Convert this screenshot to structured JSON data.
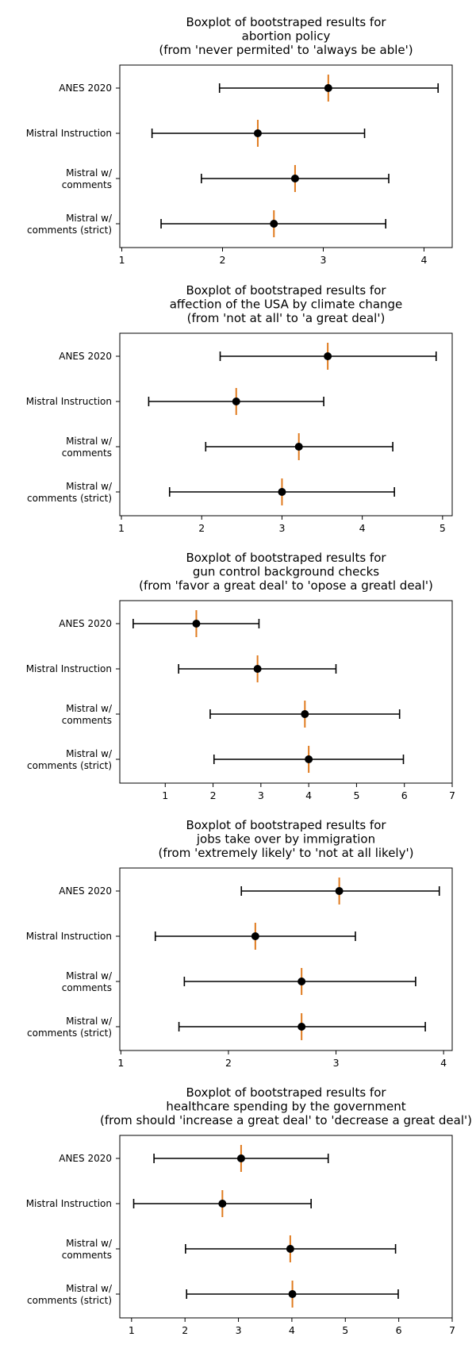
{
  "chart_data": [
    {
      "type": "errorbar",
      "title_lines": [
        "Boxplot of bootstraped results for",
        "abortion policy",
        "(from 'never permited' to 'always be able')"
      ],
      "categories": [
        [
          "ANES 2020"
        ],
        [
          "Mistral Instruction"
        ],
        [
          "Mistral w/",
          "comments"
        ],
        [
          "Mistral w/",
          "comments (strict)"
        ]
      ],
      "xlim": [
        0.98,
        4.28
      ],
      "xticks": [
        "1",
        "2",
        "3",
        "4"
      ],
      "series": [
        {
          "median": 3.05,
          "min": 1.97,
          "max": 4.14
        },
        {
          "median": 2.35,
          "min": 1.3,
          "max": 3.41
        },
        {
          "median": 2.72,
          "min": 1.79,
          "max": 3.65
        },
        {
          "median": 2.51,
          "min": 1.39,
          "max": 3.62
        }
      ]
    },
    {
      "type": "errorbar",
      "title_lines": [
        "Boxplot of bootstraped results for",
        "affection of the USA by climate change",
        "(from 'not at all' to 'a great deal')"
      ],
      "categories": [
        [
          "ANES 2020"
        ],
        [
          "Mistral Instruction"
        ],
        [
          "Mistral w/",
          "comments"
        ],
        [
          "Mistral w/",
          "comments (strict)"
        ]
      ],
      "xlim": [
        0.98,
        5.12
      ],
      "xticks": [
        "1",
        "2",
        "3",
        "4",
        "5"
      ],
      "series": [
        {
          "median": 3.57,
          "min": 2.23,
          "max": 4.92
        },
        {
          "median": 2.43,
          "min": 1.34,
          "max": 3.52
        },
        {
          "median": 3.21,
          "min": 2.05,
          "max": 4.38
        },
        {
          "median": 3.0,
          "min": 1.6,
          "max": 4.4
        }
      ]
    },
    {
      "type": "errorbar",
      "title_lines": [
        "Boxplot of bootstraped results for",
        "gun control background checks",
        "(from 'favor a great deal' to 'opose a greatl deal')"
      ],
      "categories": [
        [
          "ANES 2020"
        ],
        [
          "Mistral Instruction"
        ],
        [
          "Mistral w/",
          "comments"
        ],
        [
          "Mistral w/",
          "comments (strict)"
        ]
      ],
      "xlim": [
        0.05,
        7.0
      ],
      "xticks": [
        "1",
        "2",
        "3",
        "4",
        "5",
        "6",
        "7"
      ],
      "series": [
        {
          "median": 1.65,
          "min": 0.33,
          "max": 2.96
        },
        {
          "median": 2.93,
          "min": 1.28,
          "max": 4.57
        },
        {
          "median": 3.92,
          "min": 1.94,
          "max": 5.9
        },
        {
          "median": 4.0,
          "min": 2.02,
          "max": 5.98
        }
      ]
    },
    {
      "type": "errorbar",
      "title_lines": [
        "Boxplot of bootstraped results for",
        "jobs take over by immigration",
        "(from 'extremely likely' to 'not at all likely')"
      ],
      "categories": [
        [
          "ANES 2020"
        ],
        [
          "Mistral Instruction"
        ],
        [
          "Mistral w/",
          "comments"
        ],
        [
          "Mistral w/",
          "comments (strict)"
        ]
      ],
      "xlim": [
        0.99,
        4.08
      ],
      "xticks": [
        "1",
        "2",
        "3",
        "4"
      ],
      "series": [
        {
          "median": 3.03,
          "min": 2.12,
          "max": 3.96
        },
        {
          "median": 2.25,
          "min": 1.32,
          "max": 3.18
        },
        {
          "median": 2.68,
          "min": 1.59,
          "max": 3.74
        },
        {
          "median": 2.68,
          "min": 1.54,
          "max": 3.83
        }
      ]
    },
    {
      "type": "errorbar",
      "title_lines": [
        "Boxplot of bootstraped results for",
        "healthcare spending by the government",
        "(from should 'increase a great deal' to 'decrease a great deal')"
      ],
      "categories": [
        [
          "ANES 2020"
        ],
        [
          "Mistral Instruction"
        ],
        [
          "Mistral w/",
          "comments"
        ],
        [
          "Mistral w/",
          "comments (strict)"
        ]
      ],
      "xlim": [
        0.78,
        7.0
      ],
      "xticks": [
        "1",
        "2",
        "3",
        "4",
        "5",
        "6",
        "7"
      ],
      "series": [
        {
          "median": 3.05,
          "min": 1.42,
          "max": 4.68
        },
        {
          "median": 2.7,
          "min": 1.04,
          "max": 4.36
        },
        {
          "median": 3.97,
          "min": 2.01,
          "max": 5.94
        },
        {
          "median": 4.01,
          "min": 2.03,
          "max": 5.99
        }
      ]
    }
  ],
  "colors": {
    "axis": "#000000",
    "whisker": "#000000",
    "median_line": "#e07b1f",
    "median_marker": "#000000"
  }
}
